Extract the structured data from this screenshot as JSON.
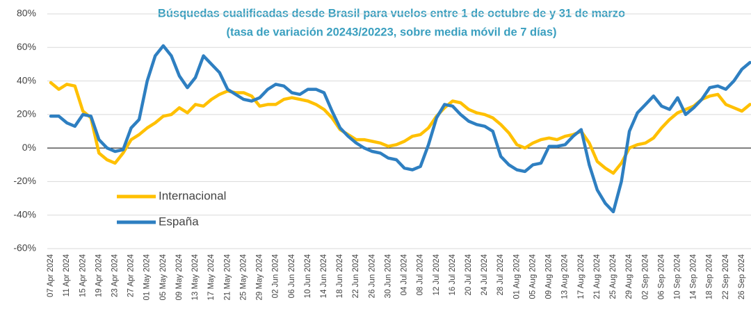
{
  "chart_data": {
    "type": "line",
    "title": "Búsquedas cualificadas desde  Brasil para vuelos entre 1 de  octubre de y 31 de marzo",
    "subtitle": "(tasa de variación 20243/20223, sobre media móvil de 7 días)",
    "categories": [
      "07 Apr 2024",
      null,
      "11 Apr 2024",
      null,
      "15 Apr 2024",
      null,
      "19 Apr 2024",
      null,
      "23 Apr 2024",
      null,
      "27 Apr 2024",
      null,
      "01 May 2024",
      null,
      "05 May 2024",
      null,
      "09 May 2024",
      null,
      "13 May 2024",
      null,
      "17 May 2024",
      null,
      "21 May 2024",
      null,
      "25 May 2024",
      null,
      "29 May 2024",
      null,
      "02 Jun 2024",
      null,
      "06 Jun 2024",
      null,
      "10 Jun 2024",
      null,
      "14 Jun 2024",
      null,
      "18 Jun 2024",
      null,
      "22 Jun 2024",
      null,
      "26 Jun 2024",
      null,
      "30 Jun 2024",
      null,
      "04 Jul 2024",
      null,
      "08 Jul 2024",
      null,
      "12 Jul 2024",
      null,
      "16 Jul 2024",
      null,
      "20 Jul 2024",
      null,
      "24 Jul 2024",
      null,
      "28 Jul 2024",
      null,
      "01 Aug 2024",
      null,
      "05 Aug 2024",
      null,
      "09 Aug 2024",
      null,
      "13 Aug 2024",
      null,
      "17 Aug 2024",
      null,
      "21 Aug 2024",
      null,
      "25 Aug 2024",
      null,
      "29 Aug 2024",
      null,
      "02 Sep 2024",
      null,
      "06 Sep 2024",
      null,
      "10 Sep 2024",
      null,
      "14 Sep 2024",
      null,
      "18 Sep 2024",
      null,
      "22 Sep 2024",
      null,
      "26 Sep 2024",
      null
    ],
    "series": [
      {
        "name": "Internacional",
        "color": "#ffc000",
        "values": [
          39,
          35,
          38,
          37,
          22,
          18,
          -3,
          -7,
          -9,
          -3,
          5,
          8,
          12,
          15,
          19,
          20,
          24,
          21,
          26,
          25,
          29,
          32,
          34,
          33,
          33,
          31,
          25,
          26,
          26,
          29,
          30,
          29,
          28,
          26,
          23,
          18,
          11,
          8,
          5,
          5,
          4,
          3,
          1,
          2,
          4,
          7,
          8,
          12,
          19,
          24,
          28,
          27,
          23,
          21,
          20,
          18,
          14,
          9,
          2,
          0,
          3,
          5,
          6,
          5,
          7,
          8,
          10,
          3,
          -8,
          -12,
          -15,
          -9,
          0,
          2,
          3,
          6,
          12,
          17,
          21,
          23,
          25,
          29,
          31,
          32,
          26,
          24,
          22,
          26
        ]
      },
      {
        "name": "España",
        "color": "#2e7fc1",
        "values": [
          19,
          19,
          15,
          13,
          20,
          19,
          5,
          0,
          -2,
          -1,
          12,
          17,
          40,
          55,
          61,
          55,
          43,
          36,
          42,
          55,
          50,
          45,
          35,
          32,
          29,
          28,
          30,
          35,
          38,
          37,
          33,
          32,
          35,
          35,
          33,
          22,
          12,
          7,
          3,
          0,
          -2,
          -3,
          -6,
          -7,
          -12,
          -13,
          -11,
          2,
          18,
          26,
          25,
          20,
          16,
          14,
          13,
          10,
          -5,
          -10,
          -13,
          -14,
          -10,
          -9,
          1,
          1,
          2,
          7,
          11,
          -10,
          -25,
          -33,
          -38,
          -20,
          10,
          21,
          26,
          31,
          25,
          23,
          30,
          20,
          24,
          29,
          36,
          37,
          35,
          40,
          47,
          51
        ]
      }
    ],
    "ylim": [
      -60,
      80
    ],
    "yticks": [
      {
        "value": -60,
        "label": "-60%"
      },
      {
        "value": -40,
        "label": "-40%"
      },
      {
        "value": -20,
        "label": "-20%"
      },
      {
        "value": 0,
        "label": "0%"
      },
      {
        "value": 20,
        "label": "20%"
      },
      {
        "value": 40,
        "label": "40%"
      },
      {
        "value": 60,
        "label": "60%"
      },
      {
        "value": 80,
        "label": "80%"
      }
    ],
    "grid": true
  }
}
